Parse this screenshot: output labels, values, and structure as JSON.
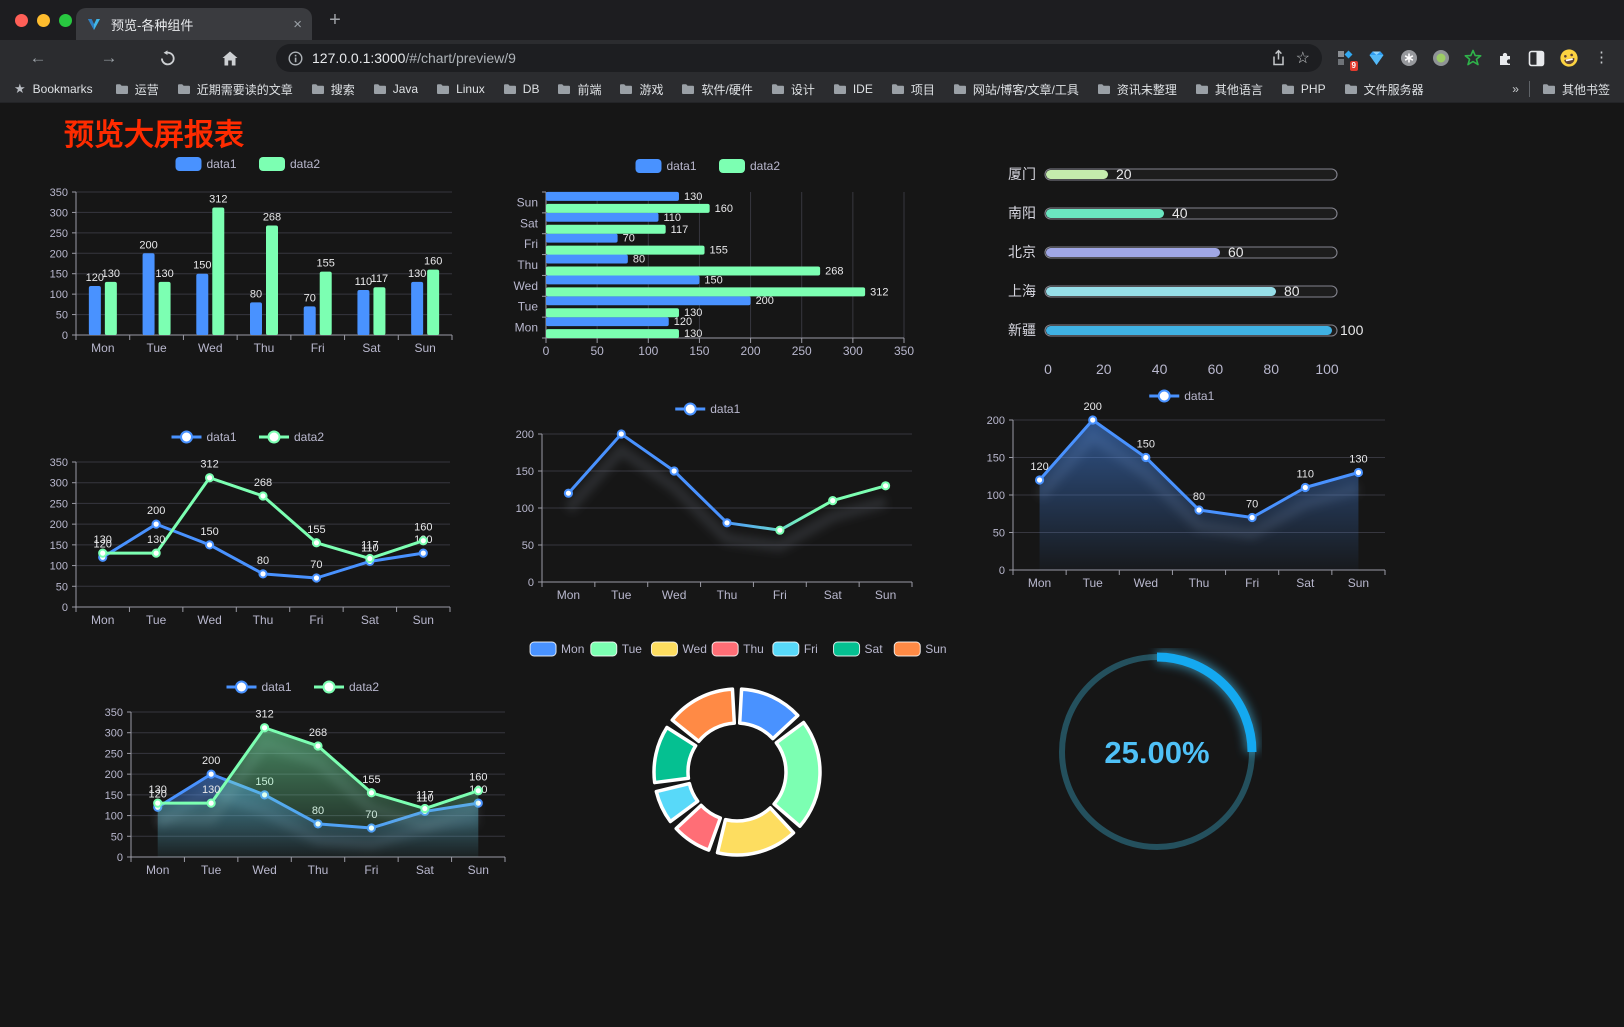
{
  "browser": {
    "traffic_lights": {
      "close": "#ff5f57",
      "minimize": "#febc2e",
      "zoom": "#28c840"
    },
    "tab": {
      "title": "预览-各种组件"
    },
    "icons": {
      "back": "←",
      "forward": "→",
      "close": "×",
      "new_tab": "+",
      "more": "⋮",
      "overflow": "»",
      "star_outline": "☆",
      "bookmarks_star": "★"
    },
    "url": {
      "host": "127.0.0.1:3000",
      "path": "/#/chart/preview/9"
    },
    "bookmarks_label": "Bookmarks",
    "bookmarks": [
      "运营",
      "近期需要读的文章",
      "搜索",
      "Java",
      "Linux",
      "DB",
      "前端",
      "游戏",
      "软件/硬件",
      "设计",
      "IDE",
      "项目",
      "网站/博客/文章/工具",
      "资讯未整理",
      "其他语言",
      "PHP",
      "文件服务器"
    ],
    "other_bookmarks": "其他书签",
    "extension_badge": "9"
  },
  "page": {
    "title": "预览大屏报表",
    "title_color": "#ff2b00",
    "background": "#161616"
  },
  "chart_data": [
    {
      "id": "c1",
      "type": "bar",
      "legend_position": "top",
      "categories": [
        "Mon",
        "Tue",
        "Wed",
        "Thu",
        "Fri",
        "Sat",
        "Sun"
      ],
      "series": [
        {
          "name": "data1",
          "color": "#4992ff",
          "values": [
            120,
            200,
            150,
            80,
            70,
            110,
            130
          ]
        },
        {
          "name": "data2",
          "color": "#7cffb2",
          "values": [
            130,
            130,
            312,
            268,
            155,
            117,
            160
          ]
        }
      ],
      "ylim": [
        0,
        350
      ],
      "yticks": [
        0,
        50,
        100,
        150,
        200,
        250,
        300,
        350
      ],
      "value_labels": true,
      "grid": true
    },
    {
      "id": "c2",
      "type": "bar-horizontal",
      "legend_position": "top",
      "categories": [
        "Mon",
        "Tue",
        "Wed",
        "Thu",
        "Fri",
        "Sat",
        "Sun"
      ],
      "series": [
        {
          "name": "data1",
          "color": "#4992ff",
          "values": [
            120,
            200,
            150,
            80,
            70,
            110,
            130
          ]
        },
        {
          "name": "data2",
          "color": "#7cffb2",
          "values": [
            130,
            130,
            312,
            268,
            155,
            117,
            160
          ]
        }
      ],
      "xlim": [
        0,
        350
      ],
      "xticks": [
        0,
        50,
        100,
        150,
        200,
        250,
        300,
        350
      ],
      "value_labels": true,
      "grid": true
    },
    {
      "id": "c3",
      "type": "progress",
      "max": 100,
      "xticks": [
        0,
        20,
        40,
        60,
        80,
        100
      ],
      "items": [
        {
          "label": "厦门",
          "value": 20,
          "color": "#c4ebad"
        },
        {
          "label": "南阳",
          "value": 40,
          "color": "#6be6c1"
        },
        {
          "label": "北京",
          "value": 60,
          "color": "#a0a7e6"
        },
        {
          "label": "上海",
          "value": 80,
          "color": "#96dee8"
        },
        {
          "label": "新疆",
          "value": 100,
          "color": "#3fb1e3"
        }
      ]
    },
    {
      "id": "c4",
      "type": "line",
      "legend_position": "top",
      "categories": [
        "Mon",
        "Tue",
        "Wed",
        "Thu",
        "Fri",
        "Sat",
        "Sun"
      ],
      "series": [
        {
          "name": "data1",
          "color": "#4992ff",
          "values": [
            120,
            200,
            150,
            80,
            70,
            110,
            130
          ]
        },
        {
          "name": "data2",
          "color": "#7cffb2",
          "values": [
            130,
            130,
            312,
            268,
            155,
            117,
            160
          ]
        }
      ],
      "ylim": [
        0,
        350
      ],
      "yticks": [
        0,
        50,
        100,
        150,
        200,
        250,
        300,
        350
      ],
      "value_labels": true,
      "grid": true
    },
    {
      "id": "c5",
      "type": "line",
      "legend_position": "top",
      "shadow": true,
      "categories": [
        "Mon",
        "Tue",
        "Wed",
        "Thu",
        "Fri",
        "Sat",
        "Sun"
      ],
      "series": [
        {
          "name": "data1",
          "color": "#4992ff",
          "gradient_colors": [
            "#4992ff",
            "#7cffb2"
          ],
          "values": [
            120,
            200,
            150,
            80,
            70,
            110,
            130
          ]
        }
      ],
      "ylim": [
        0,
        200
      ],
      "yticks": [
        0,
        50,
        100,
        150,
        200
      ],
      "value_labels": false,
      "grid": true
    },
    {
      "id": "c6",
      "type": "line",
      "legend_position": "top",
      "area": true,
      "shadow": true,
      "categories": [
        "Mon",
        "Tue",
        "Wed",
        "Thu",
        "Fri",
        "Sat",
        "Sun"
      ],
      "series": [
        {
          "name": "data1",
          "color": "#4992ff",
          "values": [
            120,
            200,
            150,
            80,
            70,
            110,
            130
          ]
        }
      ],
      "ylim": [
        0,
        200
      ],
      "yticks": [
        0,
        50,
        100,
        150,
        200
      ],
      "value_labels": true,
      "grid": true
    },
    {
      "id": "c7",
      "type": "line",
      "legend_position": "top",
      "area": true,
      "shadow": true,
      "categories": [
        "Mon",
        "Tue",
        "Wed",
        "Thu",
        "Fri",
        "Sat",
        "Sun"
      ],
      "series": [
        {
          "name": "data1",
          "color": "#4992ff",
          "values": [
            120,
            200,
            150,
            80,
            70,
            110,
            130
          ]
        },
        {
          "name": "data2",
          "color": "#7cffb2",
          "values": [
            130,
            130,
            312,
            268,
            155,
            117,
            160
          ]
        }
      ],
      "ylim": [
        0,
        350
      ],
      "yticks": [
        0,
        50,
        100,
        150,
        200,
        250,
        300,
        350
      ],
      "value_labels": true,
      "grid": true
    },
    {
      "id": "c8",
      "type": "pie",
      "legend_position": "top",
      "donut": true,
      "labels": [
        "Mon",
        "Tue",
        "Wed",
        "Thu",
        "Fri",
        "Sat",
        "Sun"
      ],
      "values": [
        120,
        200,
        150,
        80,
        70,
        110,
        130
      ],
      "colors": [
        "#4992ff",
        "#7cffb2",
        "#fddd60",
        "#ff6e76",
        "#58d9f9",
        "#05c091",
        "#ff8a45"
      ]
    },
    {
      "id": "c9",
      "type": "gauge",
      "value": 25,
      "label": "25.00%",
      "color": "#14a9f0",
      "track_color": "#24505d",
      "text_color": "#4fc1f7"
    }
  ]
}
